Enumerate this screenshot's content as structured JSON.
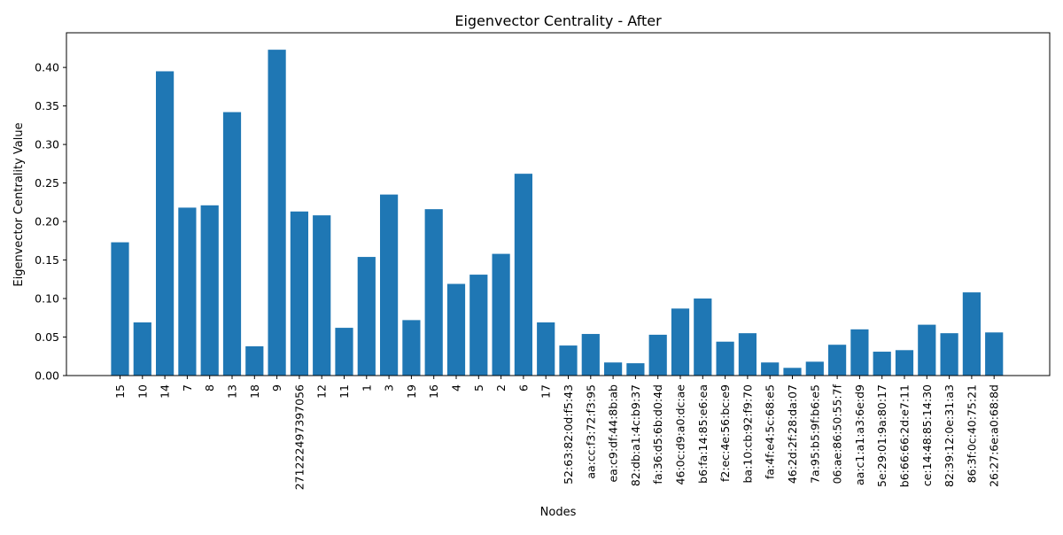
{
  "chart_data": {
    "type": "bar",
    "title": "Eigenvector Centrality - After",
    "xlabel": "Nodes",
    "ylabel": "Eigenvector Centrality Value",
    "ylim": [
      0,
      0.445
    ],
    "yticks": [
      "0.00",
      "0.05",
      "0.10",
      "0.15",
      "0.20",
      "0.25",
      "0.30",
      "0.35",
      "0.40"
    ],
    "grid": false,
    "legend": "none",
    "bar_color": "#1f77b4",
    "categories": [
      "15",
      "10",
      "14",
      "7",
      "8",
      "13",
      "18",
      "9",
      "271222497397056",
      "12",
      "11",
      "1",
      "3",
      "19",
      "16",
      "4",
      "5",
      "2",
      "6",
      "17",
      "52:63:82:0d:f5:43",
      "aa:cc:f3:72:f3:95",
      "ea:c9:df:44:8b:ab",
      "82:db:a1:4c:b9:37",
      "fa:36:d5:6b:d0:4d",
      "46:0c:d9:a0:dc:ae",
      "b6:fa:14:85:e6:ea",
      "f2:ec:4e:56:bc:e9",
      "ba:10:cb:92:f9:70",
      "fa:4f:e4:5c:68:e5",
      "46:2d:2f:28:da:07",
      "7a:95:b5:9f:b6:e5",
      "06:ae:86:50:55:7f",
      "aa:c1:a1:a3:6e:d9",
      "5e:29:01:9a:80:17",
      "b6:66:66:2d:e7:11",
      "ce:14:48:85:14:30",
      "82:39:12:0e:31:a3",
      "86:3f:0c:40:75:21",
      "26:27:6e:a0:68:8d"
    ],
    "values": [
      0.173,
      0.069,
      0.395,
      0.218,
      0.221,
      0.342,
      0.038,
      0.423,
      0.213,
      0.208,
      0.062,
      0.154,
      0.235,
      0.072,
      0.216,
      0.119,
      0.131,
      0.158,
      0.262,
      0.069,
      0.039,
      0.054,
      0.017,
      0.016,
      0.053,
      0.087,
      0.1,
      0.044,
      0.055,
      0.017,
      0.01,
      0.018,
      0.04,
      0.06,
      0.031,
      0.033,
      0.066,
      0.055,
      0.108,
      0.056
    ]
  }
}
